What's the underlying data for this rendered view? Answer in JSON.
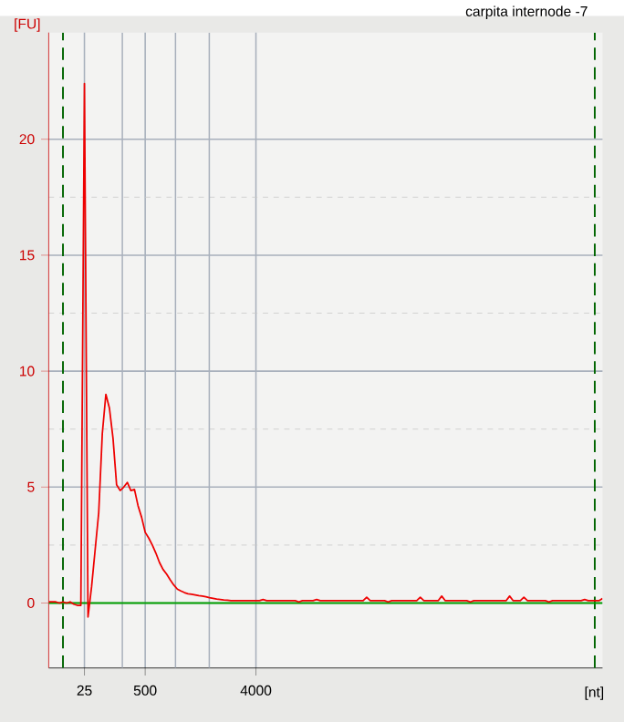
{
  "chart_data": {
    "type": "line",
    "title": "carpita internode -7",
    "xlabel": "[nt]",
    "ylabel": "[FU]",
    "categories": [
      null,
      null,
      null,
      null,
      null,
      null,
      null,
      null,
      null,
      null,
      "25",
      null,
      null,
      null,
      null,
      null,
      null,
      null,
      null,
      null,
      null,
      null,
      null,
      null,
      null,
      null,
      null,
      "500",
      null,
      null,
      null,
      null,
      null,
      null,
      null,
      null,
      null,
      null,
      null,
      null,
      null,
      null,
      null,
      null,
      null,
      null,
      null,
      null,
      null,
      null,
      null,
      null,
      null,
      null,
      null,
      null,
      null,
      null,
      "4000",
      null,
      null,
      null,
      null,
      null,
      null,
      null,
      null,
      null,
      null,
      null,
      null,
      null,
      null,
      null,
      null,
      null,
      null,
      null,
      null,
      null,
      null,
      null,
      null,
      null,
      null,
      null,
      null,
      null,
      null,
      null,
      null,
      null,
      null,
      null,
      null,
      null,
      null,
      null,
      null,
      null,
      null,
      null,
      null,
      null,
      null,
      null,
      null,
      null,
      null,
      null,
      null,
      null,
      null,
      null,
      null,
      null,
      null,
      null,
      null,
      null,
      null,
      null,
      null,
      null,
      null,
      null,
      null,
      null,
      null,
      null,
      null,
      null,
      null,
      null,
      null,
      null,
      null,
      null,
      null,
      null,
      null,
      null,
      null,
      null,
      null,
      null,
      null,
      null,
      null,
      null,
      null,
      null,
      null,
      null,
      null,
      null
    ],
    "series": [
      {
        "color": "#ee0000",
        "values": [
          0.05,
          0.05,
          0.05,
          0,
          0.05,
          0,
          0.05,
          -0.05,
          -0.1,
          -0.1,
          22.4,
          -0.6,
          0.7,
          2.3,
          3.9,
          7.3,
          9.0,
          8.4,
          7.1,
          5.1,
          4.85,
          5.0,
          5.2,
          4.85,
          4.9,
          4.2,
          3.7,
          3.05,
          2.8,
          2.5,
          2.15,
          1.75,
          1.45,
          1.25,
          1.0,
          0.78,
          0.6,
          0.52,
          0.45,
          0.4,
          0.38,
          0.35,
          0.32,
          0.3,
          0.27,
          0.23,
          0.2,
          0.17,
          0.15,
          0.13,
          0.12,
          0.1,
          0.1,
          0.1,
          0.1,
          0.1,
          0.1,
          0.1,
          0.1,
          0.1,
          0.15,
          0.1,
          0.1,
          0.1,
          0.1,
          0.1,
          0.1,
          0.1,
          0.1,
          0.1,
          0.05,
          0.1,
          0.1,
          0.1,
          0.1,
          0.15,
          0.1,
          0.1,
          0.1,
          0.1,
          0.1,
          0.1,
          0.1,
          0.1,
          0.1,
          0.1,
          0.1,
          0.1,
          0.1,
          0.25,
          0.1,
          0.1,
          0.1,
          0.1,
          0.1,
          0.05,
          0.1,
          0.1,
          0.1,
          0.1,
          0.1,
          0.1,
          0.1,
          0.1,
          0.25,
          0.1,
          0.1,
          0.1,
          0.1,
          0.1,
          0.3,
          0.1,
          0.1,
          0.1,
          0.1,
          0.1,
          0.1,
          0.1,
          0.05,
          0.1,
          0.1,
          0.1,
          0.1,
          0.1,
          0.1,
          0.1,
          0.1,
          0.1,
          0.1,
          0.3,
          0.1,
          0.1,
          0.1,
          0.25,
          0.1,
          0.1,
          0.1,
          0.1,
          0.1,
          0.1,
          0.05,
          0.1,
          0.1,
          0.1,
          0.1,
          0.1,
          0.1,
          0.1,
          0.1,
          0.1,
          0.15,
          0.1,
          0.1,
          0.1,
          0.1,
          0.2
        ]
      }
    ],
    "ylim": [
      -2.8,
      24.6
    ],
    "yticks": [
      0,
      5,
      10,
      15,
      20
    ],
    "ref_lines": [
      {
        "axis": "y",
        "value": 0,
        "color": "#00a000",
        "line_style": "solid"
      }
    ],
    "grid": true,
    "marker": "none",
    "line_style": "solid"
  }
}
